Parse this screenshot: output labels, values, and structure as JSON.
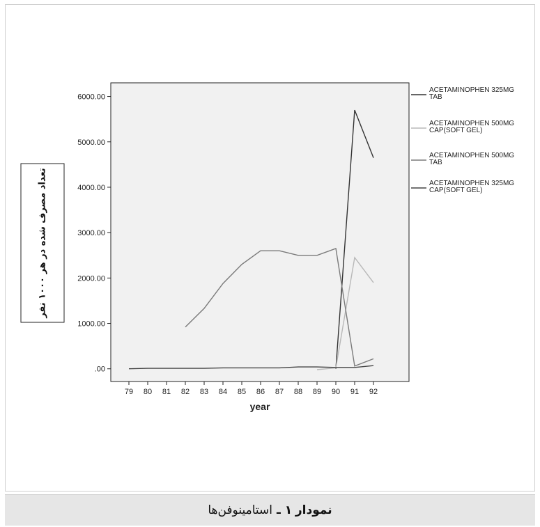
{
  "caption": {
    "number": "نمودار ۱",
    "separator": "ـ",
    "text": "استامینوفن‌ها"
  },
  "chart_data": {
    "type": "line",
    "xlabel": "year",
    "ylabel": "تعداد مصرف شده در هر ۱۰۰۰ نفر",
    "x": [
      "79",
      "80",
      "81",
      "82",
      "83",
      "84",
      "85",
      "86",
      "87",
      "88",
      "89",
      "90",
      "91",
      "92"
    ],
    "y_ticks": [
      ".00",
      "1000.00",
      "2000.00",
      "3000.00",
      "4000.00",
      "5000.00",
      "6000.00"
    ],
    "ylim": [
      -280,
      6300
    ],
    "grid": false,
    "legend_position": "right",
    "series": [
      {
        "name": "ACETAMINOPHEN 325MG TAB",
        "legend_lines": [
          "ACETAMINOPHEN 325MG",
          "TAB"
        ],
        "color": "#333333",
        "values": [
          null,
          null,
          null,
          null,
          null,
          null,
          null,
          null,
          null,
          null,
          null,
          0,
          5700,
          4650
        ]
      },
      {
        "name": "ACETAMINOPHEN 500MG CAP(SOFT GEL)",
        "legend_lines": [
          "ACETAMINOPHEN 500MG",
          "CAP(SOFT GEL)"
        ],
        "color": "#b8b8b8",
        "values": [
          null,
          null,
          null,
          null,
          null,
          null,
          null,
          null,
          null,
          null,
          -20,
          20,
          2450,
          1900
        ]
      },
      {
        "name": "ACETAMINOPHEN 500MG TAB",
        "legend_lines": [
          "ACETAMINOPHEN 500MG",
          "TAB"
        ],
        "color": "#7a7a7a",
        "values": [
          null,
          null,
          null,
          920,
          1330,
          1880,
          2300,
          2600,
          2600,
          2500,
          2500,
          2650,
          60,
          220
        ]
      },
      {
        "name": "ACETAMINOPHEN 325MG CAP(SOFT GEL)",
        "legend_lines": [
          "ACETAMINOPHEN 325MG",
          "CAP(SOFT GEL)"
        ],
        "color": "#444444",
        "values": [
          0,
          10,
          10,
          10,
          10,
          20,
          20,
          20,
          20,
          40,
          40,
          30,
          30,
          70
        ]
      }
    ]
  }
}
